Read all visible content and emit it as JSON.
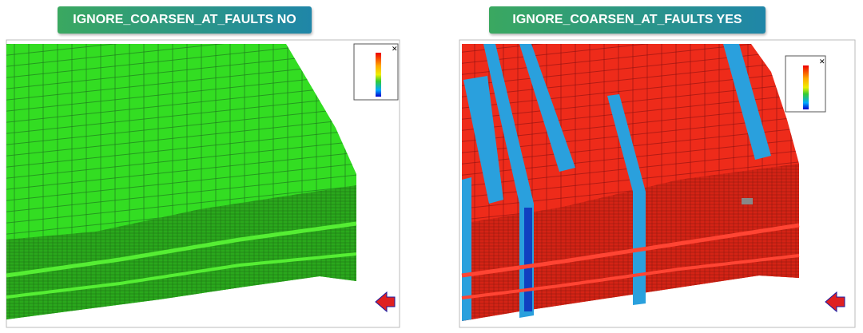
{
  "panels": [
    {
      "title": "IGNORE_COARSEN_AT_FAULTS NO"
    },
    {
      "title": "IGNORE_COARSEN_AT_FAULTS YES"
    }
  ]
}
